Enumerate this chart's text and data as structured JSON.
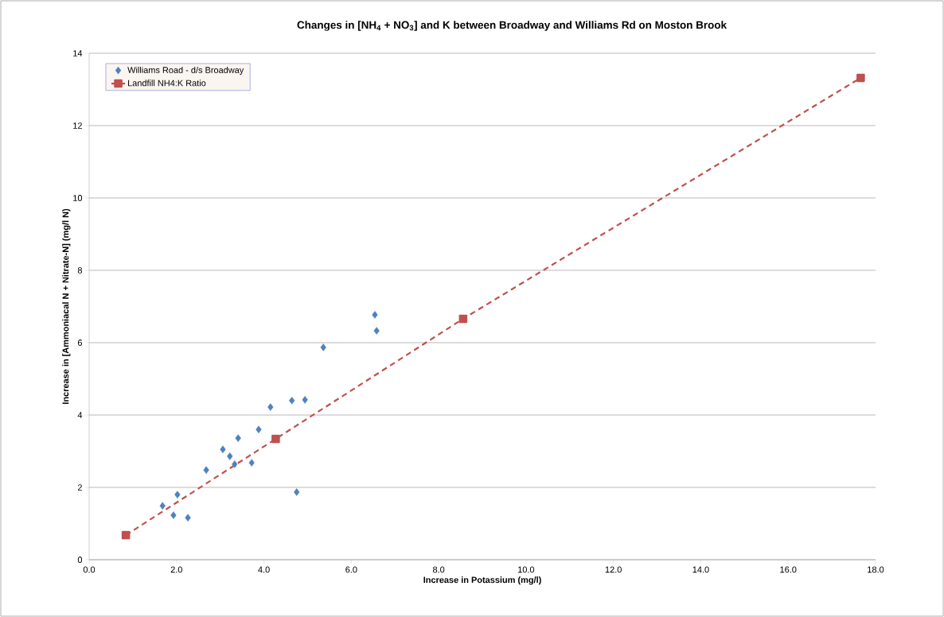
{
  "chart_data": {
    "type": "scatter",
    "title": "Changes in [NH$_{4}$ + NO$_{3}$] and K between Broadway and Williams Rd on Moston Brook",
    "xlabel": "Increase in Potassium (mg/l)",
    "ylabel": "Increase in [Ammoniacal N + Nitrate-N] (mg/l N)",
    "xlim": [
      0,
      18
    ],
    "ylim": [
      0,
      14
    ],
    "xticks": [
      {
        "value": 0,
        "label": "0.0"
      },
      {
        "value": 2,
        "label": "2.0"
      },
      {
        "value": 4,
        "label": "4.0"
      },
      {
        "value": 6,
        "label": "6.0"
      },
      {
        "value": 8,
        "label": "8.0"
      },
      {
        "value": 10,
        "label": "10.0"
      },
      {
        "value": 12,
        "label": "12.0"
      },
      {
        "value": 14,
        "label": "14.0"
      },
      {
        "value": 16,
        "label": "16.0"
      },
      {
        "value": 18,
        "label": "18.0"
      }
    ],
    "yticks": [
      0,
      2,
      4,
      6,
      8,
      10,
      12,
      14
    ],
    "grid": "y",
    "legend": "top left",
    "series": [
      {
        "name": "Williams Road - d/s Broadway",
        "marker": "diamond",
        "color": "#4f81bd",
        "x": [
          1.68,
          1.93,
          2.02,
          2.26,
          2.68,
          3.06,
          3.22,
          3.33,
          3.41,
          3.72,
          3.88,
          4.15,
          4.75,
          4.64,
          4.94,
          5.36,
          6.54,
          6.58
        ],
        "values": [
          1.49,
          1.23,
          1.8,
          1.16,
          2.48,
          3.05,
          2.86,
          2.64,
          3.36,
          2.68,
          3.6,
          4.22,
          1.87,
          4.4,
          4.42,
          5.87,
          6.77,
          6.33
        ]
      },
      {
        "name": "Landfill NH4:K Ratio",
        "type": "line",
        "marker": "square",
        "line_style": "dashed",
        "color": "#c0504d",
        "x": [
          0.84,
          4.27,
          8.56,
          17.66
        ],
        "values": [
          0.68,
          3.34,
          6.66,
          13.32
        ]
      }
    ]
  }
}
